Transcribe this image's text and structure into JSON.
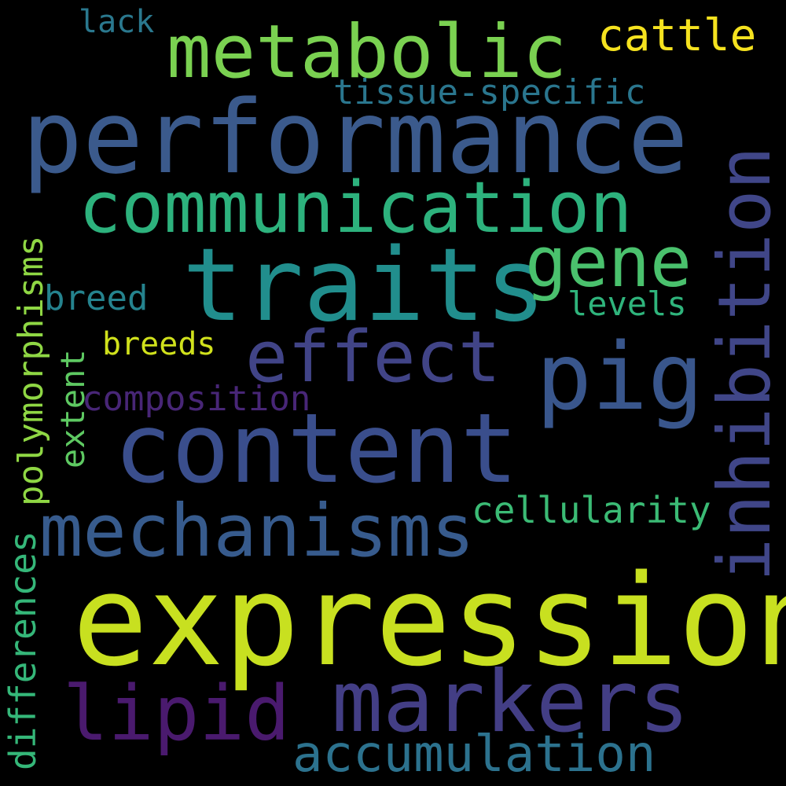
{
  "word_cloud": {
    "background": "#000000",
    "words": {
      "expression": {
        "text": "expression",
        "color": "#c8e020"
      },
      "performance": {
        "text": "performance",
        "color": "#3b5a8c"
      },
      "traits": {
        "text": "traits",
        "color": "#218e8d"
      },
      "content": {
        "text": "content",
        "color": "#3a4e8c"
      },
      "markers": {
        "text": "markers",
        "color": "#433e85"
      },
      "metabolic": {
        "text": "metabolic",
        "color": "#7ad151"
      },
      "pig": {
        "text": "pig",
        "color": "#39568c"
      },
      "inhibition": {
        "text": "inhibition",
        "color": "#404688"
      },
      "communication": {
        "text": "communication",
        "color": "#2db27d"
      },
      "mechanisms": {
        "text": "mechanisms",
        "color": "#375b8d"
      },
      "effect": {
        "text": "effect",
        "color": "#414487"
      },
      "gene": {
        "text": "gene",
        "color": "#4ac16d"
      },
      "lipid": {
        "text": "lipid",
        "color": "#4a1a6e"
      },
      "accumulation": {
        "text": "accumulation",
        "color": "#2c728e"
      },
      "cattle": {
        "text": "cattle",
        "color": "#f5e21f"
      },
      "tissue_specific": {
        "text": "tissue-specific",
        "color": "#2a768e"
      },
      "cellularity": {
        "text": "cellularity",
        "color": "#3bbb75"
      },
      "composition": {
        "text": "composition",
        "color": "#482677"
      },
      "breed": {
        "text": "breed",
        "color": "#25838e"
      },
      "levels": {
        "text": "levels",
        "color": "#2fb47c"
      },
      "breeds": {
        "text": "breeds",
        "color": "#d0e11c"
      },
      "lack": {
        "text": "lack",
        "color": "#2a788e"
      },
      "polymorphisms": {
        "text": "polymorphisms",
        "color": "#8fd744"
      },
      "extent": {
        "text": "extent",
        "color": "#5ec962"
      },
      "differences": {
        "text": "differences",
        "color": "#35b779"
      }
    }
  }
}
